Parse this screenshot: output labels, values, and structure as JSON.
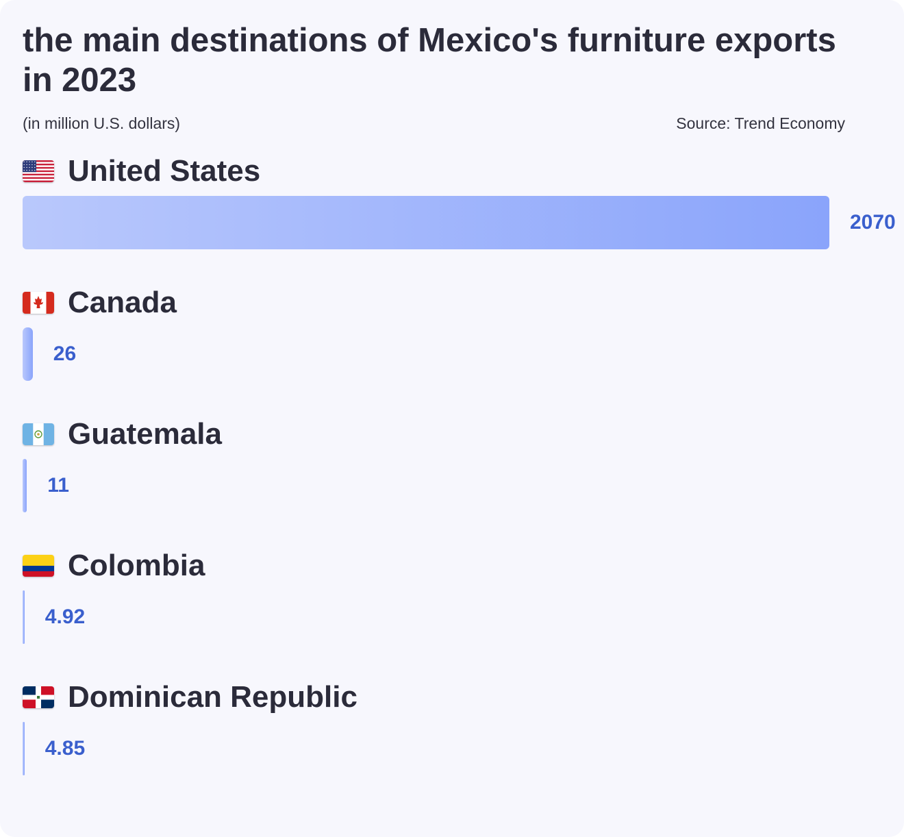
{
  "chart_data": {
    "type": "bar",
    "orientation": "horizontal",
    "title": "the main destinations of Mexico's furniture exports in 2023",
    "subtitle": "(in million U.S. dollars)",
    "source": "Source: Trend Economy",
    "categories": [
      "United States",
      "Canada",
      "Guatemala",
      "Colombia",
      "Dominican Republic"
    ],
    "values": [
      2070,
      26,
      11,
      4.92,
      4.85
    ],
    "value_labels": [
      "2070",
      "26",
      "11",
      "4.92",
      "4.85"
    ],
    "flags": [
      "us-flag-icon",
      "ca-flag-icon",
      "gt-flag-icon",
      "co-flag-icon",
      "do-flag-icon"
    ],
    "xlim": [
      0,
      2070
    ],
    "grid": false,
    "legend": "none",
    "colors": {
      "bar_start": "#b9c8fc",
      "bar_end": "#8aa4fb",
      "value_text": "#3a5fcd"
    }
  }
}
